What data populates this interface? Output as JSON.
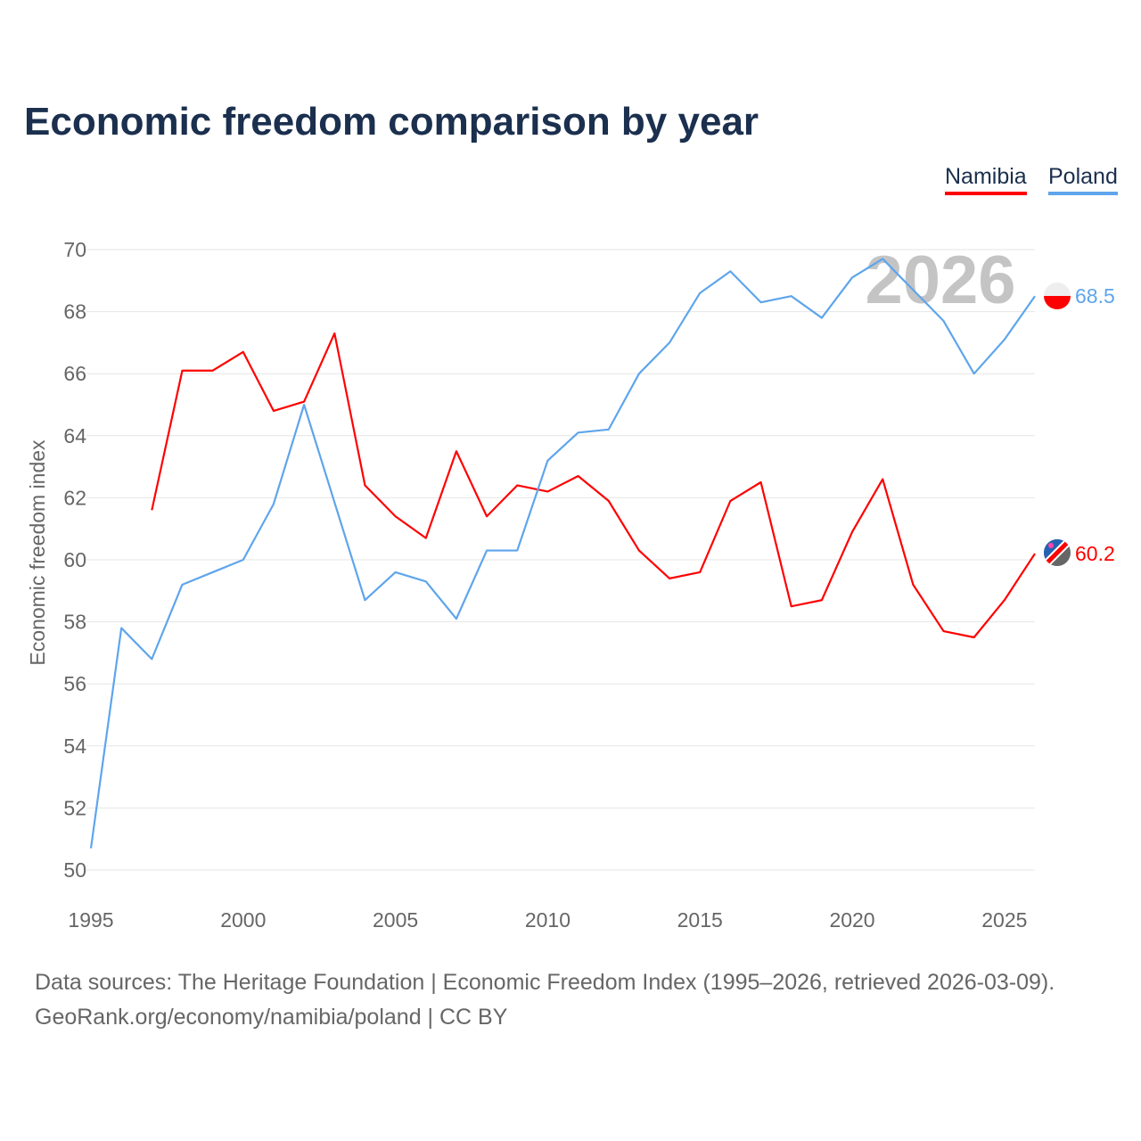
{
  "title": "Economic freedom comparison by year",
  "legend": [
    {
      "label": "Namibia",
      "color": "#ff0000"
    },
    {
      "label": "Poland",
      "color": "#5ea5ec"
    }
  ],
  "watermark_year": "2026",
  "sources": [
    "Data sources: The Heritage Foundation | Economic Freedom Index (1995–2026, retrieved 2026-03-09).",
    "GeoRank.org/economy/namibia/poland | CC BY"
  ],
  "chart_data": {
    "type": "line",
    "title": "Economic freedom comparison by year",
    "xlabel": "",
    "ylabel": "Economic freedom index",
    "xlim": [
      1995,
      2026
    ],
    "ylim": [
      50,
      70
    ],
    "xticks": [
      1995,
      2000,
      2005,
      2010,
      2015,
      2020,
      2025
    ],
    "yticks": [
      50,
      52,
      54,
      56,
      58,
      60,
      62,
      64,
      66,
      68,
      70
    ],
    "grid": true,
    "legend_position": "top-right",
    "x": [
      1995,
      1996,
      1997,
      1998,
      1999,
      2000,
      2001,
      2002,
      2003,
      2004,
      2005,
      2006,
      2007,
      2008,
      2009,
      2010,
      2011,
      2012,
      2013,
      2014,
      2015,
      2016,
      2017,
      2018,
      2019,
      2020,
      2021,
      2022,
      2023,
      2024,
      2025,
      2026
    ],
    "series": [
      {
        "name": "Namibia",
        "color": "#ff0000",
        "end_label": "60.2",
        "values": [
          null,
          null,
          61.6,
          66.1,
          66.1,
          66.7,
          64.8,
          65.1,
          67.3,
          62.4,
          61.4,
          60.7,
          63.5,
          61.4,
          62.4,
          62.2,
          62.7,
          61.9,
          60.3,
          59.4,
          59.6,
          61.9,
          62.5,
          58.5,
          58.7,
          60.9,
          62.6,
          59.2,
          57.7,
          57.5,
          58.7,
          60.2
        ]
      },
      {
        "name": "Poland",
        "color": "#5ea5ec",
        "end_label": "68.5",
        "values": [
          50.7,
          57.8,
          56.8,
          59.2,
          59.6,
          60.0,
          61.8,
          65.0,
          null,
          58.7,
          59.6,
          59.3,
          58.1,
          60.3,
          60.3,
          63.2,
          64.1,
          64.2,
          66.0,
          67.0,
          68.6,
          69.3,
          68.3,
          68.5,
          67.8,
          69.1,
          69.7,
          null,
          67.7,
          66.0,
          67.1,
          68.5
        ]
      }
    ]
  }
}
